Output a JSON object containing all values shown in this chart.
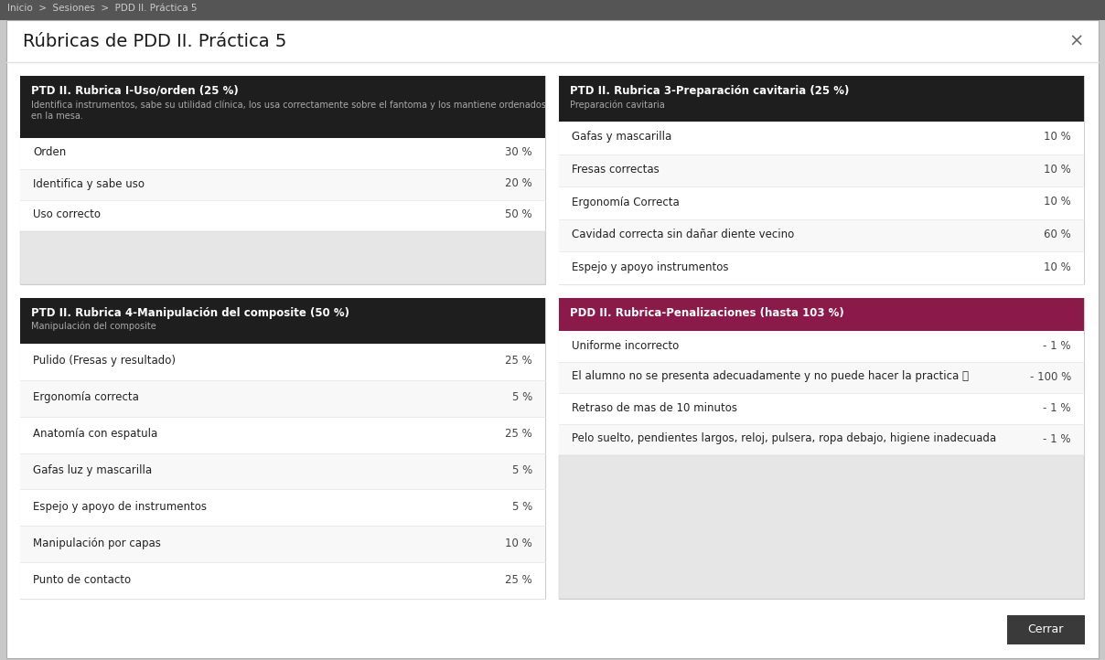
{
  "title": "Rúbricas de PDD II. Práctica 5",
  "outer_bg": "#c8c8c8",
  "dialog_bg": "#ffffff",
  "panel_header_bg": "#1e1e1e",
  "penalty_header_bg": "#8b1a4a",
  "row_bg_even": "#ffffff",
  "row_bg_odd": "#f8f8f8",
  "hatch_bg": "#e2e2e2",
  "border_color": "#dddddd",
  "text_dark": "#222222",
  "text_light": "#ffffff",
  "text_subtitle": "#aaaaaa",
  "text_value": "#444444",
  "breadcrumb_bg": "#555555",
  "breadcrumb_text": "#cccccc",
  "close_btn_bg": "#3a3a3a",
  "close_btn_text": "#ffffff",
  "panel_top_left": {
    "title": "PTD II. Rubrica I-Uso/orden (25 %)",
    "subtitle": "Identifica instrumentos, sabe su utilidad clínica, los usa correctamente sobre el fantoma y los mantiene ordenados\nen la mesa.",
    "rows": [
      {
        "label": "Orden",
        "value": "30 %"
      },
      {
        "label": "Identifica y sabe uso",
        "value": "20 %"
      },
      {
        "label": "Uso correcto",
        "value": "50 %"
      }
    ],
    "has_hatch": true
  },
  "panel_top_right": {
    "title": "PTD II. Rubrica 3-Preparación cavitaria (25 %)",
    "subtitle": "Preparación cavitaria",
    "rows": [
      {
        "label": "Gafas y mascarilla",
        "value": "10 %"
      },
      {
        "label": "Fresas correctas",
        "value": "10 %"
      },
      {
        "label": "Ergonomía Correcta",
        "value": "10 %"
      },
      {
        "label": "Cavidad correcta sin dañar diente vecino",
        "value": "60 %"
      },
      {
        "label": "Espejo y apoyo instrumentos",
        "value": "10 %"
      }
    ],
    "has_hatch": false
  },
  "panel_bottom_left": {
    "title": "PTD II. Rubrica 4-Manipulación del composite (50 %)",
    "subtitle": "Manipulación del composite",
    "rows": [
      {
        "label": "Pulido (Fresas y resultado)",
        "value": "25 %"
      },
      {
        "label": "Ergonomía correcta",
        "value": "5 %"
      },
      {
        "label": "Anatomía con espatula",
        "value": "25 %"
      },
      {
        "label": "Gafas luz y mascarilla",
        "value": "5 %"
      },
      {
        "label": "Espejo y apoyo de instrumentos",
        "value": "5 %"
      },
      {
        "label": "Manipulación por capas",
        "value": "10 %"
      },
      {
        "label": "Punto de contacto",
        "value": "25 %"
      }
    ],
    "has_hatch": false
  },
  "panel_bottom_right": {
    "title": "PDD II. Rubrica-Penalizaciones (hasta 103 %)",
    "subtitle": null,
    "rows": [
      {
        "label": "Uniforme incorrecto",
        "value": "- 1 %"
      },
      {
        "label": "El alumno no se presenta adecuadamente y no puede hacer la practica ⓘ",
        "value": "- 100 %"
      },
      {
        "label": "Retraso de mas de 10 minutos",
        "value": "- 1 %"
      },
      {
        "label": "Pelo suelto, pendientes largos, reloj, pulsera, ropa debajo, higiene inadecuada",
        "value": "- 1 %"
      }
    ],
    "has_hatch": true
  },
  "close_button": "Cerrar",
  "breadcrumb": "Inicio  >  Sesiones  >  PDD II. Práctica 5"
}
